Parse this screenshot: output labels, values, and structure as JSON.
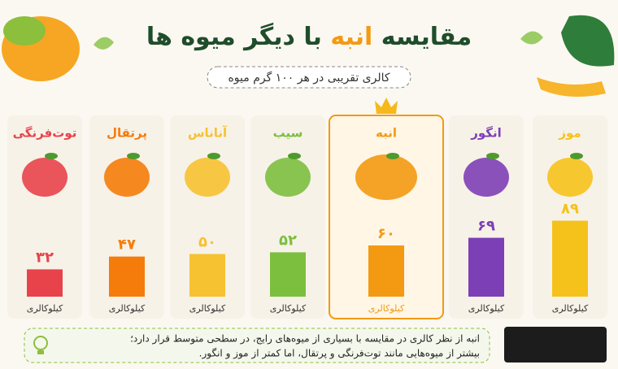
{
  "chart_data": {
    "type": "bar",
    "title_parts": [
      "مقایسه",
      "انبه",
      "با دیگر میوه ها"
    ],
    "subtitle": "کالری تقریبی در هر ۱۰۰ گرم میوه",
    "categories": [
      "موز",
      "انگور",
      "انبه",
      "سیب",
      "آناناس",
      "پرتقال",
      "توت‌فرنگی"
    ],
    "values": [
      89,
      69,
      60,
      52,
      50,
      47,
      32
    ],
    "value_labels": [
      "۸۹",
      "۶۹",
      "۶۰",
      "۵۲",
      "۵۰",
      "۴۷",
      "۳۲"
    ],
    "colors": [
      "#f5c21b",
      "#7d3fb6",
      "#f39a12",
      "#7cbf3f",
      "#f6c231",
      "#f57c0a",
      "#e8434b"
    ],
    "unit_label": "کیلوکالری",
    "note": [
      "انبه از نظر کالری در مقایسه با بسیاری از میوه‌های رایج، در سطحی متوسط قرار دارد؛",
      "بیشتر از میوه‌هایی مانند توت‌فرنگی و پرتقال، اما کمتر از موز و انگور."
    ]
  }
}
